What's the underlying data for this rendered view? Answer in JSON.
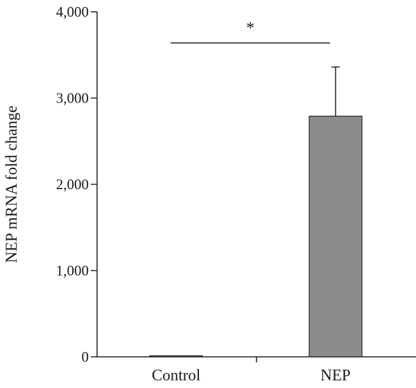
{
  "chart_data": {
    "type": "bar",
    "categories": [
      "Control",
      "NEP"
    ],
    "values": [
      1,
      2790
    ],
    "error": [
      0,
      570
    ],
    "ylabel": "NEP mRNA fold change",
    "xlabel": "",
    "ylim": [
      0,
      4000
    ],
    "yticks": [
      0,
      1000,
      2000,
      3000,
      4000
    ],
    "ytick_labels": [
      "0",
      "1,000",
      "2,000",
      "3,000",
      "4,000"
    ],
    "grid": false,
    "bar_colors": [
      "#8c8c8c",
      "#8c8c8c"
    ],
    "significance": {
      "between": [
        "Control",
        "NEP"
      ],
      "label": "*"
    }
  }
}
